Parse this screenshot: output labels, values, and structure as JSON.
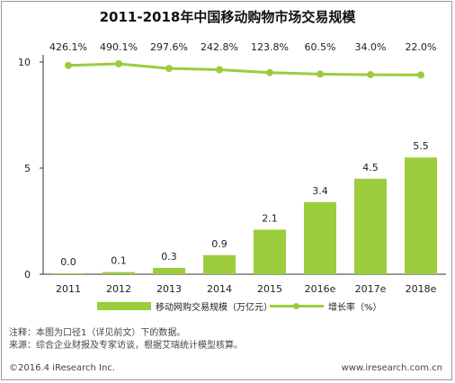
{
  "chart_data": {
    "type": "bar",
    "title": "2011-2018年中国移动购物市场交易规模",
    "categories": [
      "2011",
      "2012",
      "2013",
      "2014",
      "2015",
      "2016e",
      "2017e",
      "2018e"
    ],
    "y_ticks": [
      "0",
      "5",
      "10"
    ],
    "ylim": [
      0,
      10
    ],
    "series": [
      {
        "name": "移动网购交易规模（万亿元）",
        "type": "bar",
        "values": [
          0.0,
          0.1,
          0.3,
          0.9,
          2.1,
          3.4,
          4.5,
          5.5
        ],
        "labels": [
          "0.0",
          "0.1",
          "0.3",
          "0.9",
          "2.1",
          "3.4",
          "4.5",
          "5.5"
        ]
      },
      {
        "name": "增长率（%）",
        "type": "line",
        "values": [
          426.1,
          490.1,
          297.6,
          242.8,
          123.8,
          60.5,
          34.0,
          22.0
        ],
        "labels": [
          "426.1%",
          "490.1%",
          "297.6%",
          "242.8%",
          "123.8%",
          "60.5%",
          "34.0%",
          "22.0%"
        ]
      }
    ],
    "colors": {
      "bar": "#9ccc3c",
      "line": "#9ccc3c",
      "axis": "#333333"
    },
    "legend_position": "bottom",
    "grid": false
  },
  "notes": {
    "line1": "注释：本图为口径1（详见前文）下的数据。",
    "line2": "来源：综合企业财报及专家访谈，根据艾瑞统计模型核算。"
  },
  "footer": {
    "copyright": "©2016.4 iResearch Inc.",
    "website": "www.iresearch.com.cn"
  }
}
